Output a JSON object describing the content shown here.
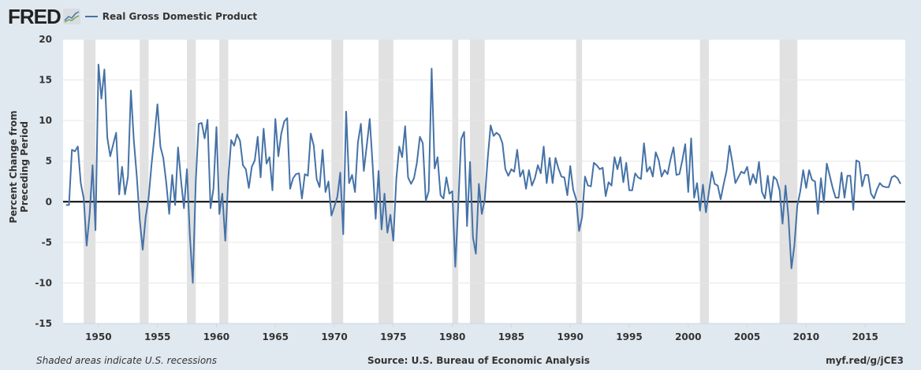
{
  "header": {
    "logo": "FRED",
    "legend_label": "Real Gross Domestic Product"
  },
  "footer": {
    "note": "Shaded areas indicate U.S. recessions",
    "source": "Source: U.S. Bureau of Economic Analysis",
    "link": "myf.red/g/jCE3"
  },
  "colors": {
    "series": "#4572a7",
    "recession": "#e1e1e1",
    "background": "#e1e9f0",
    "plot": "#ffffff",
    "grid": "#e6e6e6",
    "zero": "#000000"
  },
  "chart_data": {
    "type": "line",
    "title": "Real Gross Domestic Product",
    "xlabel": "",
    "ylabel": "Percent Change from Preceding Period",
    "xlim": [
      1947.0,
      2018.4
    ],
    "ylim": [
      -15,
      20
    ],
    "yticks": [
      -15,
      -10,
      -5,
      0,
      5,
      10,
      15,
      20
    ],
    "xticks": [
      1950,
      1955,
      1960,
      1965,
      1970,
      1975,
      1980,
      1985,
      1990,
      1995,
      2000,
      2005,
      2010,
      2015
    ],
    "grid": true,
    "legend": "top-left",
    "frequency": "quarterly",
    "start": 1947.25,
    "recessions": [
      [
        1948.75,
        1949.75
      ],
      [
        1953.5,
        1954.25
      ],
      [
        1957.5,
        1958.25
      ],
      [
        1960.25,
        1961.0
      ],
      [
        1969.75,
        1970.75
      ],
      [
        1973.75,
        1975.0
      ],
      [
        1980.0,
        1980.5
      ],
      [
        1981.5,
        1982.75
      ],
      [
        1990.5,
        1991.0
      ],
      [
        2001.0,
        2001.75
      ],
      [
        2007.75,
        2009.25
      ]
    ],
    "series": [
      {
        "name": "Real Gross Domestic Product",
        "values": [
          -0.4,
          -0.4,
          6.4,
          6.2,
          6.8,
          2.3,
          0.4,
          -5.4,
          -1.5,
          4.5,
          -3.5,
          16.9,
          12.7,
          16.3,
          7.9,
          5.6,
          7.1,
          8.5,
          0.9,
          4.3,
          0.9,
          3.1,
          13.7,
          7.6,
          3.1,
          -2.2,
          -5.9,
          -1.9,
          0.4,
          4.6,
          8.1,
          12.0,
          6.8,
          5.4,
          2.3,
          -1.5,
          3.3,
          -0.4,
          6.7,
          2.6,
          -0.8,
          4.0,
          -4.2,
          -10.0,
          2.6,
          9.6,
          9.7,
          7.8,
          10.1,
          -0.8,
          1.6,
          9.2,
          -1.5,
          1.0,
          -4.8,
          2.7,
          7.6,
          6.9,
          8.3,
          7.5,
          4.5,
          4.0,
          1.7,
          4.3,
          5.1,
          8.0,
          3.0,
          9.0,
          4.7,
          5.5,
          1.4,
          10.2,
          5.6,
          8.4,
          9.9,
          10.3,
          1.6,
          2.9,
          3.4,
          3.5,
          0.4,
          3.4,
          3.2,
          8.4,
          6.9,
          2.8,
          1.8,
          6.4,
          1.2,
          2.5,
          -1.7,
          -0.6,
          0.6,
          3.6,
          -4.0,
          11.1,
          2.3,
          3.3,
          1.2,
          7.3,
          9.6,
          3.8,
          7.0,
          10.2,
          4.5,
          -2.1,
          3.8,
          -3.4,
          1.0,
          -3.8,
          -1.6,
          -4.8,
          2.8,
          6.8,
          5.5,
          9.3,
          3.0,
          2.2,
          2.9,
          4.8,
          8.0,
          7.2,
          0.1,
          1.3,
          16.4,
          4.1,
          5.5,
          0.8,
          0.4,
          3.0,
          1.0,
          1.3,
          -8.0,
          -0.5,
          7.7,
          8.6,
          -3.0,
          4.9,
          -4.4,
          -6.4,
          2.2,
          -1.5,
          0.2,
          5.3,
          9.4,
          8.1,
          8.5,
          8.2,
          7.2,
          4.0,
          3.2,
          4.0,
          3.7,
          6.4,
          3.1,
          3.9,
          1.6,
          3.9,
          2.0,
          2.9,
          4.5,
          3.5,
          6.8,
          2.3,
          5.4,
          2.3,
          5.4,
          4.1,
          3.1,
          3.0,
          0.8,
          4.4,
          1.5,
          0.3,
          -3.6,
          -1.9,
          3.1,
          2.0,
          1.9,
          4.8,
          4.5,
          4.0,
          4.2,
          0.7,
          2.4,
          2.0,
          5.5,
          4.0,
          5.5,
          2.4,
          4.8,
          1.4,
          1.4,
          3.5,
          3.0,
          2.8,
          7.2,
          3.7,
          4.3,
          3.1,
          6.1,
          5.1,
          3.1,
          3.9,
          3.4,
          5.2,
          6.7,
          3.3,
          3.4,
          5.1,
          7.1,
          1.2,
          7.8,
          0.5,
          2.3,
          -1.1,
          2.1,
          -1.3,
          1.1,
          3.7,
          2.2,
          2.0,
          0.3,
          2.1,
          3.8,
          6.9,
          4.8,
          2.3,
          3.0,
          3.7,
          3.5,
          4.3,
          2.1,
          3.4,
          2.3,
          4.9,
          1.2,
          0.4,
          3.2,
          0.2,
          3.1,
          2.7,
          1.4,
          -2.7,
          2.0,
          -1.9,
          -8.2,
          -5.4,
          -0.5,
          1.3,
          3.9,
          1.7,
          3.9,
          2.7,
          2.5,
          -1.5,
          2.9,
          -0.1,
          4.7,
          3.2,
          1.7,
          0.5,
          0.5,
          3.6,
          0.5,
          3.2,
          3.2,
          -1.0,
          5.1,
          4.9,
          1.9,
          3.3,
          3.3,
          1.0,
          0.4,
          1.5,
          2.3,
          1.9,
          1.8,
          1.8,
          3.0,
          3.2,
          2.9,
          2.2
        ]
      }
    ]
  }
}
